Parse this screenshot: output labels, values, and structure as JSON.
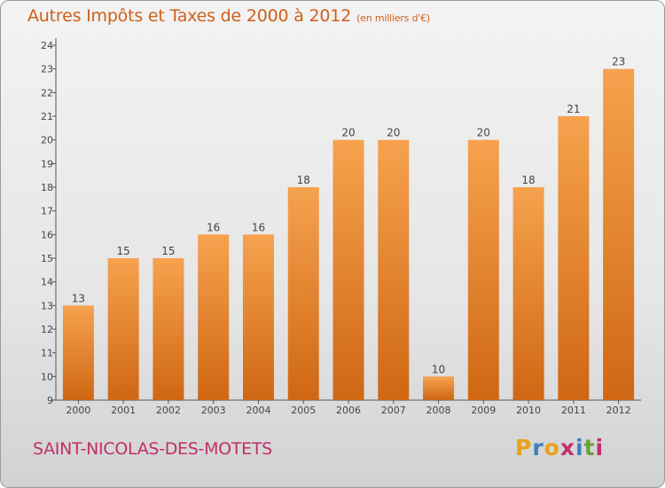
{
  "header": {
    "title": "Autres Impôts et Taxes de 2000 à 2012",
    "unit": "(en milliers d'€)"
  },
  "footer": {
    "commune": "SAINT-NICOLAS-DES-MOTETS",
    "logo": "Proxiti",
    "logo_colors": [
      "#e8a21a",
      "#3b7fc4",
      "#e8a21a",
      "#c0306a",
      "#3b7fc4",
      "#6aa23a",
      "#c0306a"
    ]
  },
  "chart_data": {
    "type": "bar",
    "title": "Autres Impôts et Taxes de 2000 à 2012",
    "categories": [
      "2000",
      "2001",
      "2002",
      "2003",
      "2004",
      "2005",
      "2006",
      "2007",
      "2008",
      "2009",
      "2010",
      "2011",
      "2012"
    ],
    "values": [
      13,
      15,
      15,
      16,
      16,
      18,
      20,
      20,
      10,
      20,
      18,
      21,
      23
    ],
    "ylim": [
      9,
      24
    ],
    "yticks": [
      9,
      10,
      11,
      12,
      13,
      14,
      15,
      16,
      17,
      18,
      19,
      20,
      21,
      22,
      23,
      24
    ],
    "grid": false,
    "bar_color_top": "#f6a24e",
    "bar_color_bottom": "#cf6714"
  }
}
